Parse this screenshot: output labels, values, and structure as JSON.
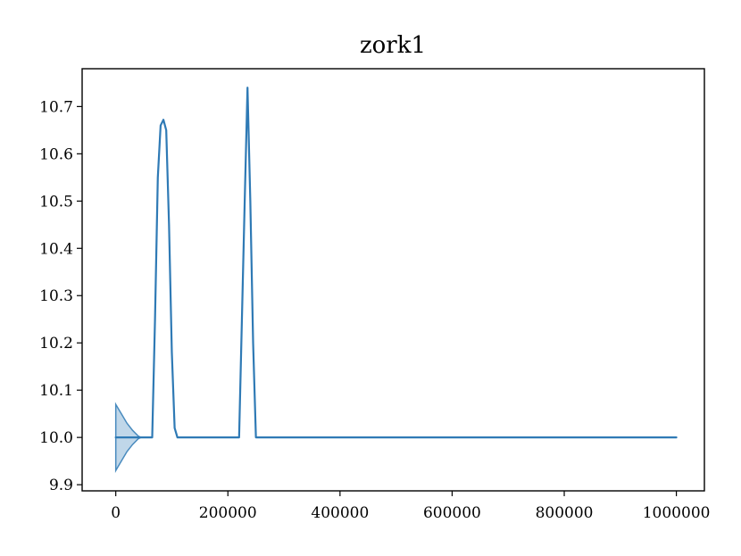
{
  "chart_data": {
    "type": "line",
    "title": "zork1",
    "xlabel": "",
    "ylabel": "",
    "xlim": [
      -60000,
      1050000
    ],
    "ylim": [
      9.887,
      10.78
    ],
    "xticks": [
      0,
      200000,
      400000,
      600000,
      800000,
      1000000
    ],
    "xtick_labels": [
      "0",
      "200000",
      "400000",
      "600000",
      "800000",
      "1000000"
    ],
    "yticks": [
      9.9,
      10.0,
      10.1,
      10.2,
      10.3,
      10.4,
      10.5,
      10.6,
      10.7
    ],
    "ytick_labels": [
      "9.9",
      "10.0",
      "10.1",
      "10.2",
      "10.3",
      "10.4",
      "10.5",
      "10.6",
      "10.7"
    ],
    "grid": false,
    "legend": "none",
    "line_color": "#2f7ab5",
    "band_color": "#2f7ab5",
    "series": [
      {
        "x": [
          0,
          20000,
          40000,
          65000,
          70000,
          75000,
          80000,
          85000,
          90000,
          95000,
          100000,
          105000,
          110000,
          150000,
          200000,
          220000,
          225000,
          230000,
          235000,
          240000,
          245000,
          250000,
          300000,
          400000,
          500000,
          600000,
          700000,
          800000,
          900000,
          1000000
        ],
        "y": [
          10.0,
          10.0,
          10.0,
          10.0,
          10.25,
          10.55,
          10.66,
          10.672,
          10.65,
          10.45,
          10.18,
          10.02,
          10.0,
          10.0,
          10.0,
          10.0,
          10.25,
          10.5,
          10.74,
          10.5,
          10.2,
          10.0,
          10.0,
          10.0,
          10.0,
          10.0,
          10.0,
          10.0,
          10.0,
          10.0
        ],
        "band": {
          "x": [
            0,
            10000,
            20000,
            30000,
            40000,
            45000
          ],
          "upper": [
            10.07,
            10.05,
            10.03,
            10.015,
            10.003,
            10.0
          ],
          "lower": [
            9.93,
            9.95,
            9.97,
            9.985,
            9.997,
            10.0
          ]
        }
      }
    ]
  }
}
